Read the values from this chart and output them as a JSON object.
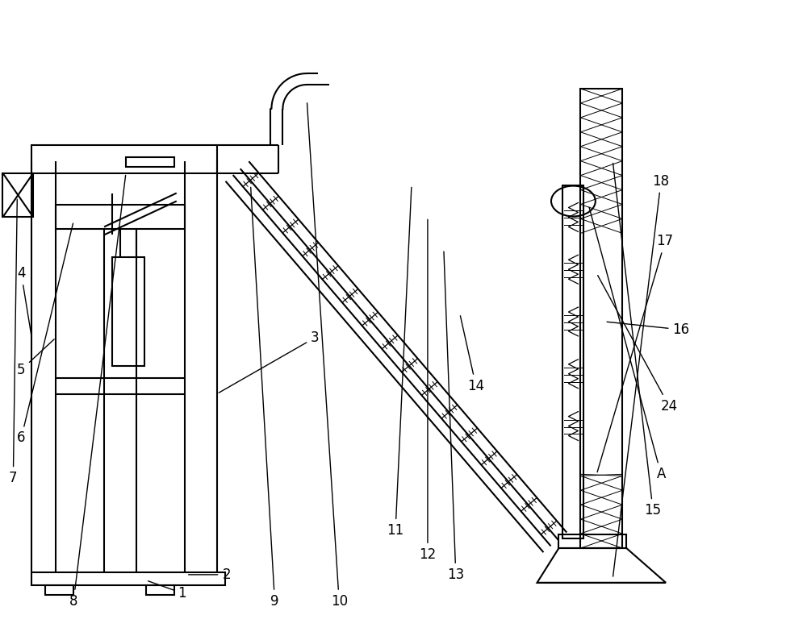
{
  "bg_color": "#ffffff",
  "line_color": "#000000",
  "fig_width": 10.0,
  "fig_height": 7.89,
  "lw_main": 1.5,
  "lw_thin": 0.9,
  "lw_hatch": 0.7
}
